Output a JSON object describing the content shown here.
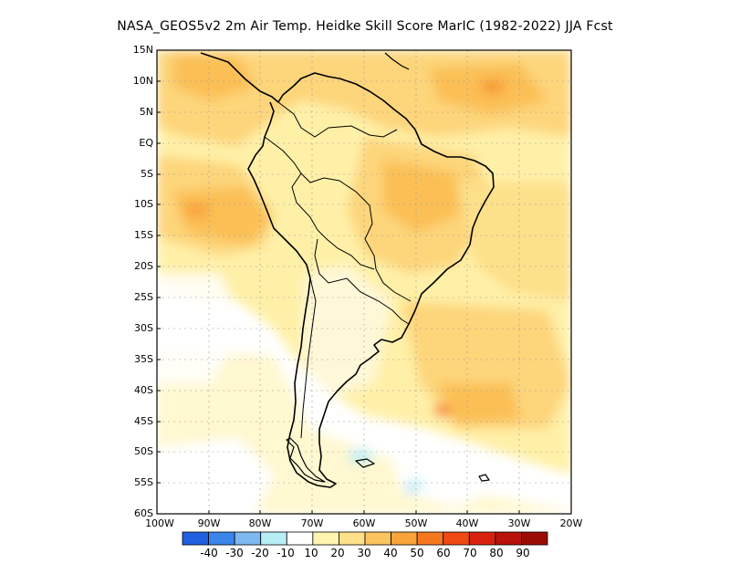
{
  "title": "NASA_GEOS5v2  2m Air Temp. Heidke Skill Score MarIC (1982-2022) JJA Fcst",
  "map": {
    "lat_ticks": [
      "15N",
      "10N",
      "5N",
      "EQ",
      "5S",
      "10S",
      "15S",
      "20S",
      "25S",
      "30S",
      "35S",
      "40S",
      "45S",
      "50S",
      "55S",
      "60S"
    ],
    "lon_ticks": [
      "100W",
      "90W",
      "80W",
      "70W",
      "60W",
      "50W",
      "40W",
      "30W",
      "20W"
    ]
  },
  "colorbar": {
    "labels": [
      "-40",
      "-30",
      "-20",
      "-10",
      "10",
      "20",
      "30",
      "40",
      "50",
      "60",
      "70",
      "80",
      "90"
    ],
    "colors": [
      "#1f5fe0",
      "#3a86ea",
      "#7eb8f0",
      "#b7eef6",
      "#ffffff",
      "#fff3b0",
      "#fde089",
      "#fcc45e",
      "#f9a43a",
      "#f6781e",
      "#ef4a14",
      "#d9220e",
      "#b8120a",
      "#9b0b06"
    ]
  }
}
